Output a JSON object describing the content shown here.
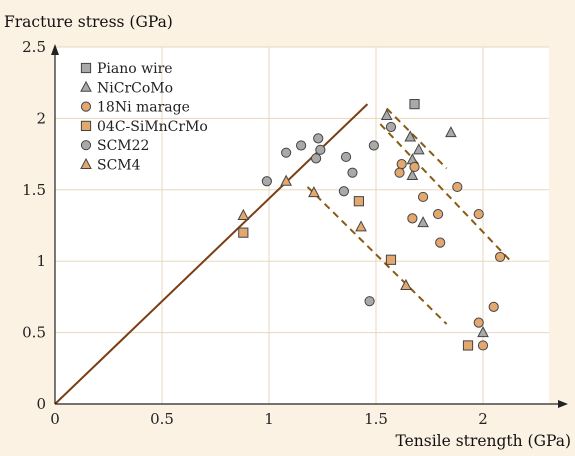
{
  "chart_data": {
    "type": "scatter",
    "title": "",
    "xlabel": "Tensile strength (GPa)",
    "ylabel": "Fracture stress (GPa)",
    "xlim": [
      0,
      2.3
    ],
    "ylim": [
      0,
      2.5
    ],
    "xticks": [
      0,
      0.5,
      1,
      1.5,
      2
    ],
    "yticks": [
      0,
      0.5,
      1,
      1.5,
      2,
      2.5
    ],
    "xtick_labels": [
      "0",
      "0.5",
      "1",
      "1.5",
      "2"
    ],
    "ytick_labels": [
      "0",
      "0.5",
      "1",
      "1.5",
      "2",
      "2.5"
    ],
    "grid": true,
    "legend_position": "top-left",
    "colors": {
      "background": "#FCF2E3",
      "plot_background": "#FFFFFF",
      "grid": "#E7D8BE",
      "line": "#7A3E12",
      "dashed": "#8A5A12",
      "gray_fill": "#A9A9A9",
      "orange_fill": "#E2A870"
    },
    "series": [
      {
        "name": "Piano wire",
        "marker": "square",
        "fill": "gray",
        "points": [
          [
            1.68,
            2.1
          ]
        ]
      },
      {
        "name": "NiCrCoMo",
        "marker": "triangle",
        "fill": "gray",
        "points": [
          [
            1.55,
            2.02
          ],
          [
            1.66,
            1.87
          ],
          [
            1.7,
            1.78
          ],
          [
            1.85,
            1.9
          ],
          [
            1.67,
            1.71
          ],
          [
            1.67,
            1.6
          ],
          [
            1.72,
            1.27
          ],
          [
            2.0,
            0.5
          ]
        ]
      },
      {
        "name": "18Ni marage",
        "marker": "circle",
        "fill": "orange",
        "points": [
          [
            1.62,
            1.68
          ],
          [
            1.61,
            1.62
          ],
          [
            1.68,
            1.66
          ],
          [
            1.72,
            1.45
          ],
          [
            1.79,
            1.33
          ],
          [
            1.88,
            1.52
          ],
          [
            1.67,
            1.3
          ],
          [
            1.8,
            1.13
          ],
          [
            1.98,
            1.33
          ],
          [
            2.08,
            1.03
          ],
          [
            2.05,
            0.68
          ],
          [
            1.98,
            0.57
          ],
          [
            2.0,
            0.41
          ]
        ]
      },
      {
        "name": "04C-SiMnCrMo",
        "marker": "square",
        "fill": "orange",
        "points": [
          [
            0.88,
            1.2
          ],
          [
            1.42,
            1.42
          ],
          [
            1.57,
            1.01
          ],
          [
            1.93,
            0.41
          ]
        ]
      },
      {
        "name": "SCM22",
        "marker": "circle",
        "fill": "gray",
        "points": [
          [
            0.99,
            1.56
          ],
          [
            1.08,
            1.76
          ],
          [
            1.15,
            1.81
          ],
          [
            1.22,
            1.72
          ],
          [
            1.23,
            1.86
          ],
          [
            1.24,
            1.78
          ],
          [
            1.36,
            1.73
          ],
          [
            1.35,
            1.49
          ],
          [
            1.39,
            1.62
          ],
          [
            1.49,
            1.81
          ],
          [
            1.57,
            1.94
          ],
          [
            1.47,
            0.72
          ]
        ]
      },
      {
        "name": "SCM4",
        "marker": "triangle",
        "fill": "orange",
        "points": [
          [
            0.88,
            1.32
          ],
          [
            1.08,
            1.56
          ],
          [
            1.21,
            1.48
          ],
          [
            1.43,
            1.24
          ],
          [
            1.64,
            0.83
          ]
        ]
      }
    ],
    "reference_line": {
      "style": "solid",
      "points": [
        [
          0,
          0
        ],
        [
          1.46,
          2.1
        ]
      ]
    },
    "trend_lines": [
      {
        "style": "dashed",
        "points": [
          [
            1.55,
            2.07
          ],
          [
            1.83,
            1.65
          ]
        ]
      },
      {
        "style": "dashed",
        "points": [
          [
            1.52,
            1.96
          ],
          [
            2.13,
            1.0
          ]
        ]
      },
      {
        "style": "dashed",
        "points": [
          [
            1.18,
            1.52
          ],
          [
            1.83,
            0.56
          ]
        ]
      }
    ]
  }
}
